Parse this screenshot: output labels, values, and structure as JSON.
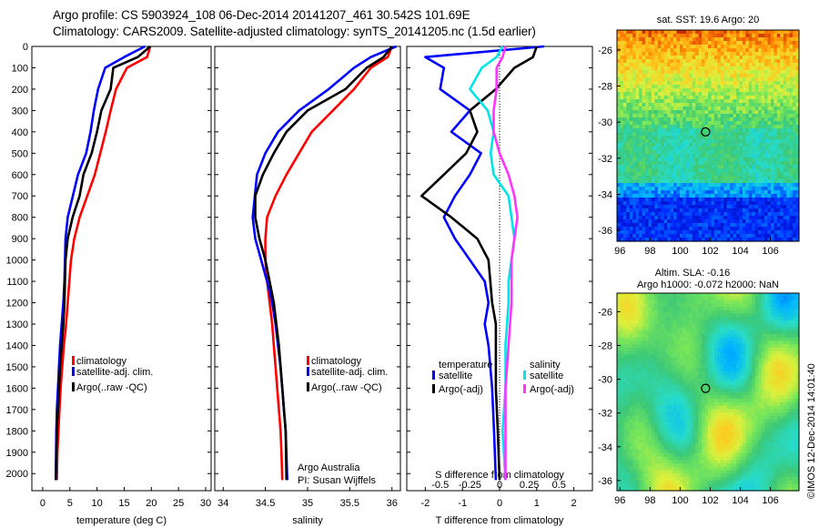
{
  "header": {
    "line1": "Argo profile: CS 5903924_108 06-Dec-2014 20141207_461 30.542S 101.69E",
    "line2": "Climatology: CARS2009. Satellite-adjusted climatology: synTS_20141205.nc (1.5d earlier)"
  },
  "colors": {
    "climatology": "#ff0000",
    "satellite": "#0000ff",
    "argo": "#000000",
    "satellite_t": "#00e5e5",
    "argo_s": "#ff33ff"
  },
  "chart_data": [
    {
      "type": "line",
      "xlabel": "temperature (deg C)",
      "ylabel": "",
      "xlim": [
        -2,
        31
      ],
      "ylim": [
        2080,
        0
      ],
      "y_ticks": [
        0,
        100,
        200,
        300,
        400,
        500,
        600,
        700,
        800,
        900,
        1000,
        1100,
        1200,
        1300,
        1400,
        1500,
        1600,
        1700,
        1800,
        1900,
        2000
      ],
      "x_ticks": [
        0,
        5,
        10,
        15,
        20,
        25,
        30
      ],
      "legend": [
        "climatology",
        "satellite-adj. clim.",
        "Argo(..raw -QC)"
      ],
      "legend_placement": "lower-center",
      "series": [
        {
          "name": "climatology",
          "color": "#ff0000",
          "x": [
            19.8,
            19.2,
            15.5,
            13.5,
            12.5,
            11.6,
            10.6,
            9.6,
            8.2,
            6.8,
            5.8,
            5.2,
            4.9,
            4.6,
            4.3,
            3.9,
            3.6,
            3.3,
            3.1,
            2.9,
            2.7,
            2.6
          ],
          "y": [
            0,
            50,
            100,
            200,
            300,
            400,
            500,
            600,
            700,
            800,
            900,
            1000,
            1100,
            1200,
            1300,
            1400,
            1500,
            1600,
            1700,
            1800,
            1900,
            2030
          ]
        },
        {
          "name": "satellite-adj. clim.",
          "color": "#0000ff",
          "x": [
            18.8,
            15.0,
            11.5,
            10.2,
            9.4,
            8.8,
            8.0,
            6.5,
            4.6,
            4.2,
            4.1,
            4.0,
            3.8,
            3.5,
            3.2,
            3.0,
            2.8,
            2.6,
            2.5,
            2.4
          ],
          "y": [
            0,
            50,
            100,
            200,
            300,
            400,
            500,
            600,
            800,
            900,
            1000,
            1100,
            1200,
            1300,
            1400,
            1500,
            1600,
            1700,
            1800,
            2030
          ]
        },
        {
          "name": "Argo(..raw -QC)",
          "color": "#000000",
          "x": [
            19.8,
            17.5,
            13.0,
            12.5,
            10.8,
            10.0,
            9.0,
            7.5,
            6.8,
            5.5,
            4.6,
            4.2,
            4.1,
            4.0,
            3.8,
            3.5,
            3.2,
            3.0,
            2.8,
            2.6,
            2.5,
            2.4
          ],
          "y": [
            0,
            50,
            100,
            200,
            300,
            400,
            500,
            600,
            700,
            800,
            900,
            1000,
            1100,
            1200,
            1300,
            1400,
            1500,
            1600,
            1700,
            1800,
            1900,
            2030
          ]
        }
      ]
    },
    {
      "type": "line",
      "xlabel": "salinity",
      "ylabel": "",
      "xlim": [
        33.9,
        36.1
      ],
      "ylim": [
        2080,
        0
      ],
      "x_ticks": [
        34,
        34.5,
        35,
        35.5,
        36
      ],
      "legend": [
        "climatology",
        "satellite-adj. clim.",
        "Argo(..raw -QC)"
      ],
      "legend_placement": "lower-right",
      "annotations": [
        "Argo Australia",
        "PI: Susan Wijffels"
      ],
      "series": [
        {
          "name": "climatology",
          "color": "#ff0000",
          "x": [
            36.0,
            35.95,
            35.75,
            35.55,
            35.3,
            35.05,
            34.9,
            34.75,
            34.62,
            34.52,
            34.5,
            34.5,
            34.52,
            34.55,
            34.58,
            34.6,
            34.62,
            34.64,
            34.66,
            34.68,
            34.69,
            34.7
          ],
          "y": [
            0,
            50,
            100,
            200,
            300,
            400,
            500,
            600,
            700,
            800,
            900,
            1000,
            1100,
            1200,
            1300,
            1400,
            1500,
            1600,
            1700,
            1800,
            1900,
            2030
          ]
        },
        {
          "name": "satellite-adj. clim.",
          "color": "#0000ff",
          "x": [
            36.05,
            35.75,
            35.55,
            35.25,
            34.9,
            34.65,
            34.5,
            34.4,
            34.35,
            34.38,
            34.45,
            34.52,
            34.58,
            34.62,
            34.65,
            34.68,
            34.7,
            34.72,
            34.74,
            34.76
          ],
          "y": [
            0,
            50,
            100,
            200,
            300,
            400,
            500,
            600,
            800,
            900,
            1000,
            1100,
            1200,
            1300,
            1400,
            1500,
            1600,
            1700,
            1800,
            2030
          ]
        },
        {
          "name": "Argo(..raw -QC)",
          "color": "#000000",
          "x": [
            36.0,
            35.9,
            35.7,
            35.45,
            35.0,
            34.75,
            34.6,
            34.47,
            34.38,
            34.38,
            34.43,
            34.5,
            34.55,
            34.6,
            34.63,
            34.66,
            34.68,
            34.7,
            34.72,
            34.74,
            34.75
          ],
          "y": [
            0,
            50,
            100,
            200,
            300,
            400,
            500,
            600,
            700,
            800,
            900,
            1000,
            1100,
            1200,
            1300,
            1400,
            1500,
            1600,
            1700,
            1800,
            2030
          ]
        }
      ]
    },
    {
      "type": "line",
      "xlabel": "T difference from climatology",
      "top_xlabel": "S difference from climatology",
      "xlim": [
        -2.5,
        2.5
      ],
      "s_ticks": [
        "-0.5",
        "-0.25",
        "0",
        "0.25",
        "0.5"
      ],
      "t_ticks": [
        "-2",
        "-1",
        "0",
        "1",
        "2"
      ],
      "legend_titles": [
        "temperature",
        "salinity"
      ],
      "legend": [
        "satellite",
        "Argo(-adj)",
        "satellite",
        "Argo(-adj)"
      ],
      "legend_placement": "lower-center",
      "zero_line": "dotted",
      "series": [
        {
          "name": "satellite",
          "group": "temperature",
          "color": "#0000ff",
          "x": [
            1.2,
            -2.0,
            -1.5,
            -1.6,
            -0.8,
            -1.3,
            -0.5,
            -0.8,
            -1.2,
            -1.5,
            -1.2,
            -0.8,
            -0.4,
            -0.3,
            -0.4,
            -0.3,
            -0.2,
            -0.15,
            -0.1
          ],
          "y": [
            0,
            50,
            100,
            200,
            300,
            400,
            500,
            600,
            700,
            800,
            900,
            1000,
            1100,
            1200,
            1300,
            1400,
            1600,
            1800,
            2030
          ]
        },
        {
          "name": "Argo(-adj)",
          "group": "temperature",
          "color": "#000000",
          "x": [
            1.0,
            0.9,
            0.4,
            -0.1,
            -0.8,
            -0.6,
            -0.9,
            -1.5,
            -2.1,
            -1.3,
            -0.6,
            -0.3,
            -0.2,
            -0.1,
            -0.1,
            -0.1,
            -0.05,
            0.0
          ],
          "y": [
            0,
            50,
            100,
            200,
            300,
            400,
            500,
            600,
            700,
            800,
            900,
            1000,
            1200,
            1300,
            1400,
            1600,
            1800,
            2030
          ]
        },
        {
          "name": "satellite",
          "group": "salinity",
          "color": "#00e5e5",
          "x": [
            0.05,
            -0.05,
            -0.3,
            -0.5,
            -0.2,
            -0.1,
            -0.15,
            -0.1,
            0.15,
            0.2,
            0.25,
            0.2,
            0.15,
            0.15,
            0.1,
            0.1,
            0.05,
            0.1
          ],
          "y": [
            0,
            50,
            100,
            200,
            300,
            400,
            500,
            600,
            700,
            800,
            900,
            1000,
            1100,
            1200,
            1400,
            1600,
            1800,
            2030
          ]
        },
        {
          "name": "Argo(-adj)",
          "group": "salinity",
          "color": "#ff33ff",
          "x": [
            0.1,
            0.05,
            -0.05,
            -0.05,
            -0.1,
            -0.1,
            0.0,
            0.15,
            0.25,
            0.3,
            0.25,
            0.2,
            0.2,
            0.15,
            0.1,
            0.1
          ],
          "y": [
            0,
            50,
            100,
            200,
            300,
            400,
            500,
            600,
            700,
            800,
            900,
            1000,
            1200,
            1400,
            1600,
            2030
          ]
        }
      ]
    },
    {
      "type": "heatmap",
      "title": "sat. SST: 19.6  Argo: 20",
      "x_ticks": [
        96,
        98,
        100,
        102,
        104,
        106
      ],
      "y_ticks": [
        -26,
        -28,
        -30,
        -32,
        -34,
        -36
      ],
      "marker": {
        "lon": 101.69,
        "lat": -30.542
      }
    },
    {
      "type": "heatmap",
      "title_lines": [
        "Altim. SLA: -0.16",
        "Argo h1000: -0.072 h2000: NaN"
      ],
      "x_ticks": [
        96,
        98,
        100,
        102,
        104,
        106
      ],
      "y_ticks": [
        -26,
        -28,
        -30,
        -32,
        -34,
        -36
      ],
      "marker": {
        "lon": 101.69,
        "lat": -30.542
      }
    }
  ],
  "stamp": "©IMOS 12-Dec-2014 14:01:40"
}
